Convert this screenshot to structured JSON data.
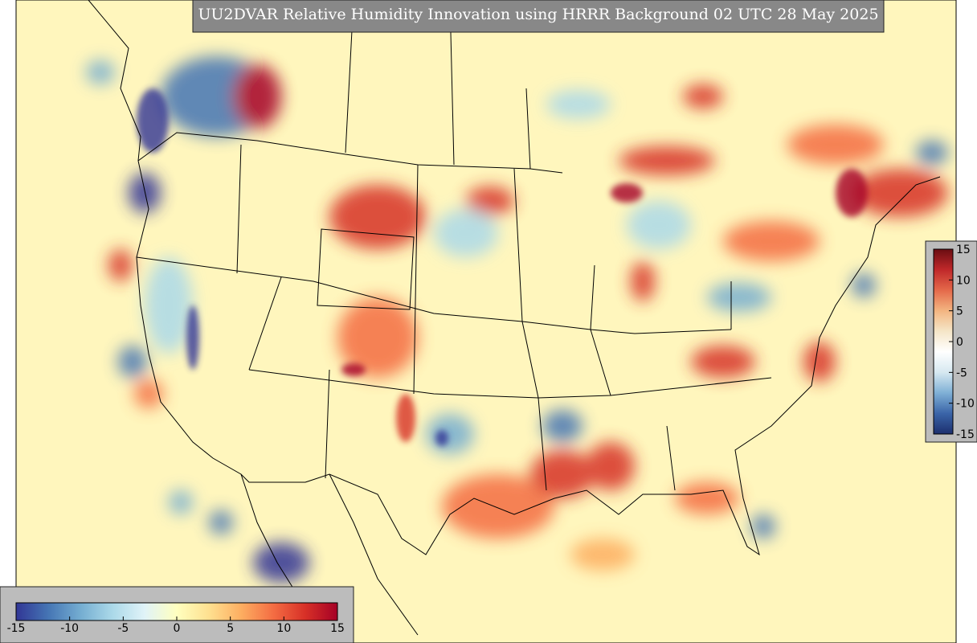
{
  "title": "UU2DVAR Relative Humidity Innovation using HRRR Background 02 UTC 28 May 2025",
  "colorbar": {
    "lim": [
      -15,
      15
    ],
    "ticks": [
      -15,
      -10,
      -5,
      0,
      5,
      10,
      15
    ],
    "colors": [
      "#313695",
      "#4575b4",
      "#74add1",
      "#abd9e9",
      "#e0f3f8",
      "#ffffbf",
      "#fee090",
      "#fdae61",
      "#f46d43",
      "#d73027",
      "#a50026"
    ]
  },
  "side_colorbar": {
    "lim": [
      -15,
      15
    ],
    "ticks": [
      15,
      10,
      5,
      0,
      -5,
      -10,
      -15
    ],
    "colors": [
      "#1c2f6e",
      "#3a64a8",
      "#7fb0d6",
      "#d6e8f0",
      "#ffffff",
      "#f5e6c8",
      "#f3b581",
      "#e4694a",
      "#c0282a",
      "#6a0d12"
    ]
  }
}
